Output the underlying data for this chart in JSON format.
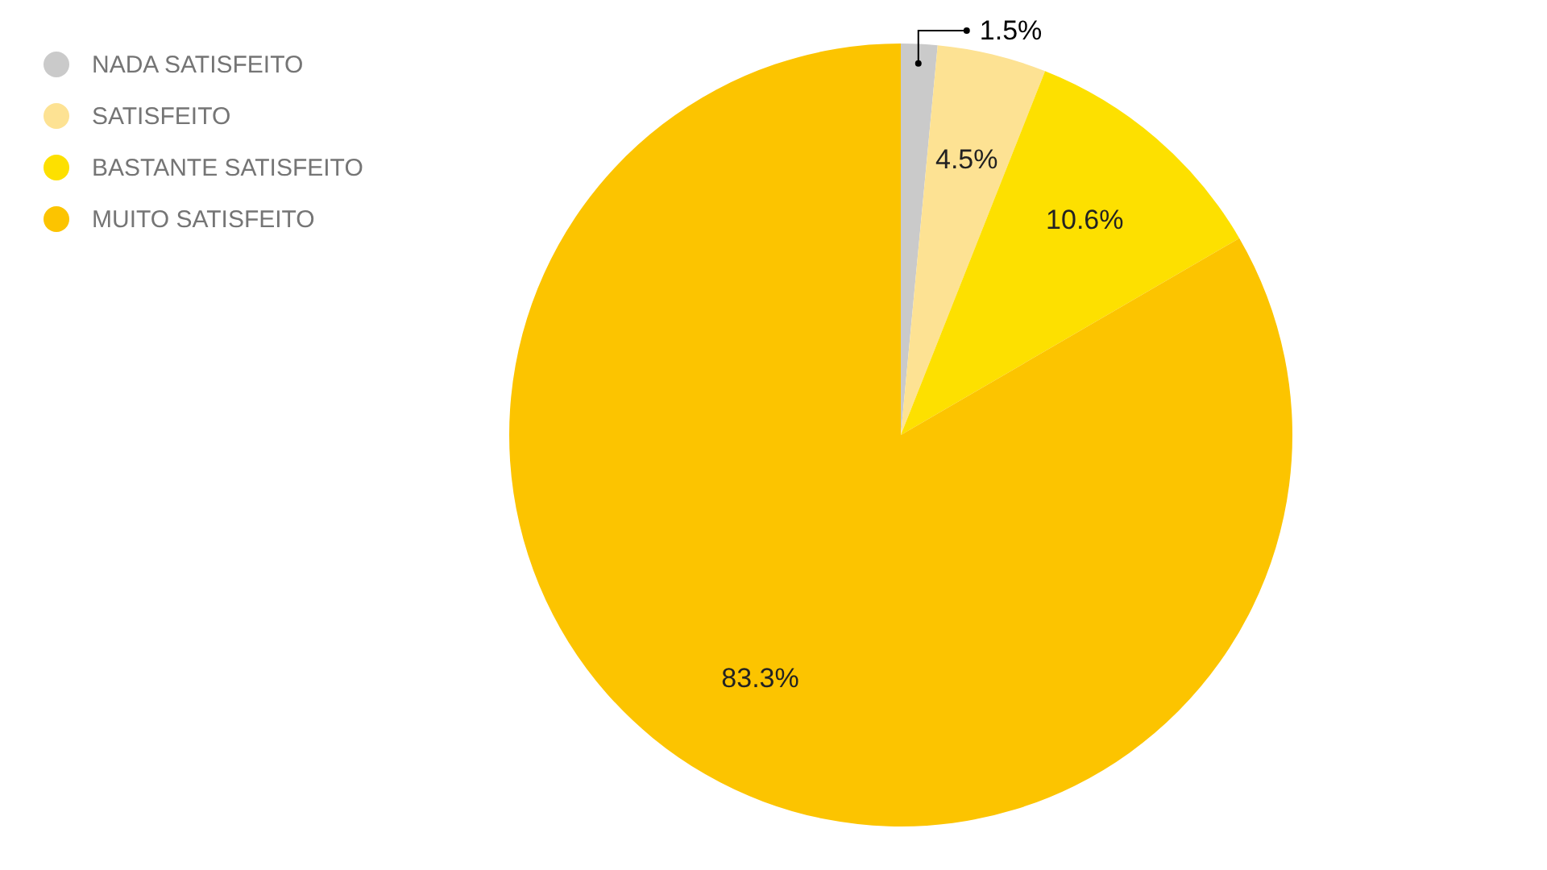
{
  "chart_data": {
    "type": "pie",
    "categories": [
      "NADA SATISFEITO",
      "SATISFEITO",
      "BASTANTE SATISFEITO",
      "MUITO SATISFEITO"
    ],
    "values": [
      1.5,
      4.5,
      10.6,
      83.3
    ],
    "colors": [
      "#cacaca",
      "#fde293",
      "#fde000",
      "#fcc400"
    ],
    "value_labels": [
      "1.5%",
      "4.5%",
      "10.6%",
      "83.3%"
    ],
    "legend": "top left"
  }
}
